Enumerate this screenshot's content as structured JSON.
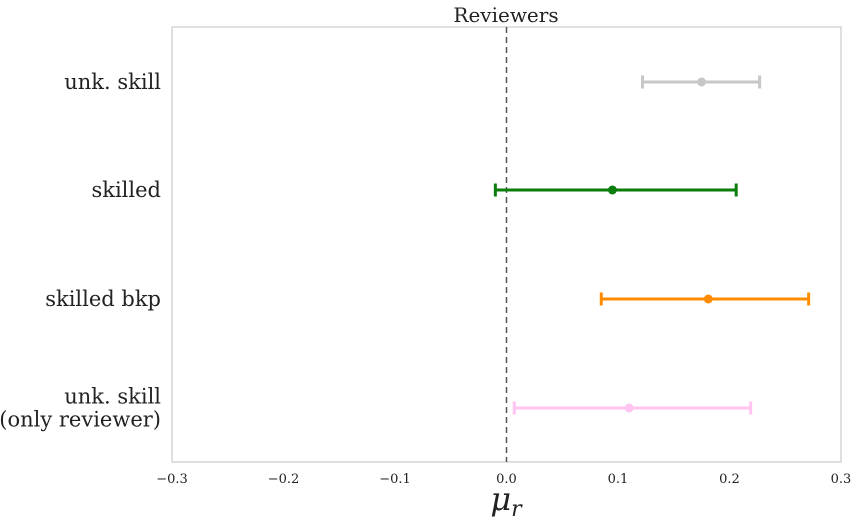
{
  "chart_data": {
    "type": "errorbar",
    "title": "Reviewers",
    "xlabel_base": "μ",
    "xlabel_sub": "r",
    "ylabel": "",
    "xlim": [
      -0.3,
      0.3
    ],
    "xticks": [
      -0.3,
      -0.2,
      -0.1,
      0.0,
      0.1,
      0.2,
      0.3
    ],
    "xtick_labels": [
      "−0.3",
      "−0.2",
      "−0.1",
      "0.0",
      "0.1",
      "0.2",
      "0.3"
    ],
    "reference_line_x": 0.0,
    "grid": false,
    "series": [
      {
        "label_lines": [
          "unk. skill"
        ],
        "mean": 0.175,
        "lower": 0.122,
        "upper": 0.227,
        "color": "#c7c7c7"
      },
      {
        "label_lines": [
          "skilled"
        ],
        "mean": 0.095,
        "lower": -0.01,
        "upper": 0.206,
        "color": "#0a7d0a"
      },
      {
        "label_lines": [
          "skilled bkp"
        ],
        "mean": 0.181,
        "lower": 0.085,
        "upper": 0.271,
        "color": "#ff8c00"
      },
      {
        "label_lines": [
          "unk. skill",
          "(only reviewer)"
        ],
        "mean": 0.11,
        "lower": 0.007,
        "upper": 0.219,
        "color": "#ffc4f0"
      }
    ]
  }
}
